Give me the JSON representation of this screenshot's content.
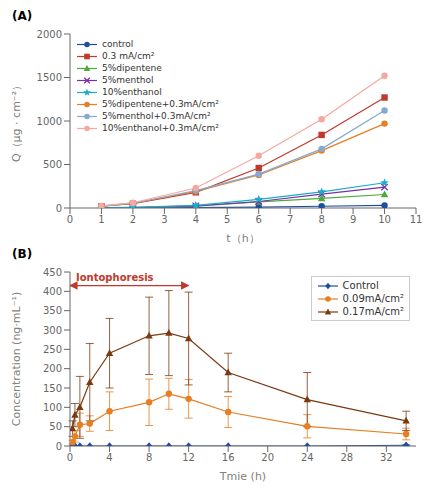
{
  "chart_data": [
    {
      "type": "line",
      "title": "(A)",
      "x_label": "t（h）",
      "y_label": "Q（μg · cm⁻²）",
      "xlim": [
        0,
        11
      ],
      "ylim": [
        0,
        2000
      ],
      "xticks": [
        0,
        1,
        2,
        3,
        4,
        5,
        6,
        7,
        8,
        9,
        10,
        11
      ],
      "yticks": [
        0,
        500,
        1000,
        1500,
        2000
      ],
      "grid": false,
      "legend": "upper left",
      "x": [
        1,
        2,
        4,
        6,
        8,
        10
      ],
      "series": [
        {
          "name": "control",
          "color": "#1f4e9f",
          "marker": "circle",
          "line_style": "solid",
          "values": [
            2,
            3,
            5,
            10,
            20,
            30
          ]
        },
        {
          "name": "0.3 mA/cm²",
          "color": "#c0392b",
          "marker": "square",
          "line_style": "solid",
          "values": [
            20,
            50,
            180,
            460,
            840,
            1270
          ]
        },
        {
          "name": "5%dipentene",
          "color": "#4aaa3a",
          "marker": "triangle",
          "line_style": "solid",
          "values": [
            2,
            5,
            20,
            70,
            110,
            155
          ]
        },
        {
          "name": "5%menthol",
          "color": "#7b2fa8",
          "marker": "x",
          "line_style": "solid",
          "values": [
            3,
            6,
            25,
            75,
            160,
            240
          ]
        },
        {
          "name": "10%enthanol",
          "color": "#1aadce",
          "marker": "star",
          "line_style": "solid",
          "values": [
            4,
            8,
            30,
            100,
            185,
            290
          ]
        },
        {
          "name": "5%dipentene+0.3mA/cm²",
          "color": "#e67e22",
          "marker": "circle",
          "line_style": "solid",
          "values": [
            22,
            55,
            190,
            380,
            660,
            970
          ]
        },
        {
          "name": "5%menthol+0.3mA/cm²",
          "color": "#85a9d0",
          "marker": "circle",
          "line_style": "solid",
          "values": [
            22,
            55,
            200,
            390,
            680,
            1120
          ]
        },
        {
          "name": "10%enthanol+0.3mA/cm²",
          "color": "#f4a9a0",
          "marker": "circle",
          "line_style": "solid",
          "values": [
            25,
            60,
            230,
            600,
            1020,
            1520
          ]
        }
      ]
    },
    {
      "type": "line",
      "title": "(B)",
      "x_label": "Tmie (h)",
      "y_label": "Concentration (ng·mL⁻¹)",
      "xlim": [
        0,
        35
      ],
      "ylim": [
        0,
        450
      ],
      "xticks": [
        0,
        4,
        8,
        12,
        16,
        20,
        24,
        28,
        32
      ],
      "yticks": [
        0,
        50,
        100,
        150,
        200,
        250,
        300,
        350,
        400,
        450
      ],
      "grid": false,
      "legend": "upper right",
      "annotations": [
        {
          "text": "Iontophoresis",
          "x": [
            0,
            12
          ],
          "y": 415,
          "color": "#c0392b"
        }
      ],
      "series": [
        {
          "name": "Control",
          "color": "#1f4e9f",
          "marker": "diamond",
          "line_style": "solid",
          "x": [
            0,
            0.5,
            1,
            2,
            4,
            8,
            10,
            12,
            16,
            24,
            34
          ],
          "values": [
            0,
            0,
            0,
            0,
            0,
            0,
            0,
            0,
            0,
            0,
            2
          ],
          "errors": [
            0,
            0,
            0,
            0,
            0,
            0,
            0,
            0,
            0,
            0,
            1
          ]
        },
        {
          "name": "0.09mA/cm²",
          "color": "#e67e22",
          "marker": "circle",
          "line_style": "solid",
          "x": [
            0.25,
            0.5,
            1,
            2,
            4,
            8,
            10,
            12,
            16,
            24,
            34
          ],
          "values": [
            10,
            25,
            55,
            58,
            90,
            113,
            135,
            122,
            88,
            51,
            31
          ],
          "errors": [
            5,
            15,
            30,
            20,
            50,
            60,
            40,
            50,
            40,
            30,
            15
          ]
        },
        {
          "name": "0.17mA/cm²",
          "color": "#7b3a10",
          "marker": "triangle",
          "line_style": "solid",
          "x": [
            0.25,
            0.5,
            1,
            2,
            4,
            8,
            10,
            12,
            16,
            24,
            34
          ],
          "values": [
            45,
            80,
            100,
            165,
            240,
            285,
            292,
            278,
            190,
            120,
            65
          ],
          "errors": [
            20,
            30,
            80,
            100,
            90,
            100,
            110,
            120,
            50,
            70,
            25
          ]
        }
      ]
    }
  ]
}
